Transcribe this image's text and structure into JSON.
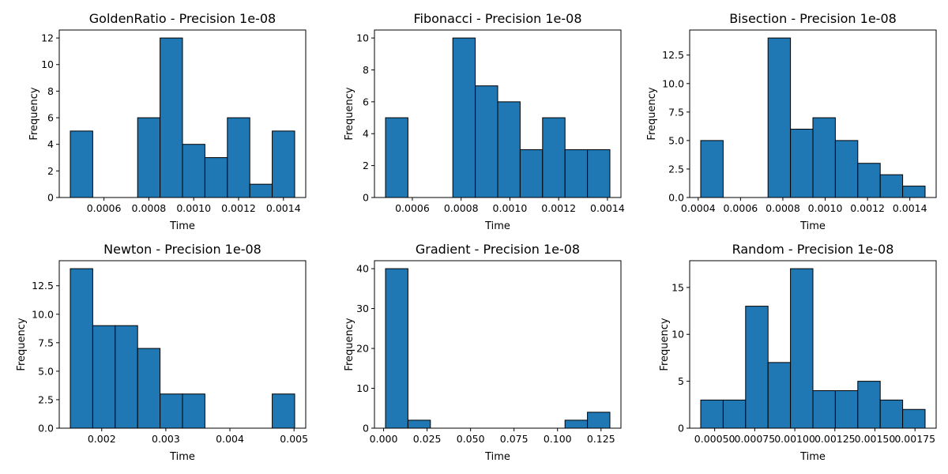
{
  "chart_data": [
    {
      "type": "bar",
      "title": "GoldenRatio - Precision 1e-08",
      "xlabel": "Time",
      "ylabel": "Frequency",
      "bin_edges": [
        0.00045,
        0.00055,
        0.00065,
        0.00075,
        0.00085,
        0.00095,
        0.00105,
        0.00115,
        0.00125,
        0.00135,
        0.00145
      ],
      "values": [
        5,
        0,
        0,
        6,
        12,
        4,
        3,
        6,
        1,
        5
      ],
      "xlim": [
        0.00045,
        0.00145
      ],
      "ylim": [
        0,
        12.6
      ],
      "xticks": [
        {
          "value": 0.0006,
          "label": "0.0006"
        },
        {
          "value": 0.0008,
          "label": "0.0008"
        },
        {
          "value": 0.001,
          "label": "0.0010"
        },
        {
          "value": 0.0012,
          "label": "0.0012"
        },
        {
          "value": 0.0014,
          "label": "0.0014"
        }
      ],
      "yticks": [
        {
          "value": 0,
          "label": "0"
        },
        {
          "value": 2,
          "label": "2"
        },
        {
          "value": 4,
          "label": "4"
        },
        {
          "value": 6,
          "label": "6"
        },
        {
          "value": 8,
          "label": "8"
        },
        {
          "value": 10,
          "label": "10"
        },
        {
          "value": 12,
          "label": "12"
        }
      ],
      "color": "#1f77b4"
    },
    {
      "type": "bar",
      "title": "Fibonacci - Precision 1e-08",
      "xlabel": "Time",
      "ylabel": "Frequency",
      "bin_edges": [
        0.00049,
        0.000582,
        0.000674,
        0.000766,
        0.000858,
        0.00095,
        0.001042,
        0.001134,
        0.001226,
        0.001318,
        0.00141
      ],
      "values": [
        5,
        0,
        0,
        10,
        7,
        6,
        3,
        5,
        3,
        3
      ],
      "xlim": [
        0.00049,
        0.00141
      ],
      "ylim": [
        0,
        10.5
      ],
      "xticks": [
        {
          "value": 0.0006,
          "label": "0.0006"
        },
        {
          "value": 0.0008,
          "label": "0.0008"
        },
        {
          "value": 0.001,
          "label": "0.0010"
        },
        {
          "value": 0.0012,
          "label": "0.0012"
        },
        {
          "value": 0.0014,
          "label": "0.0014"
        }
      ],
      "yticks": [
        {
          "value": 0,
          "label": "0"
        },
        {
          "value": 2,
          "label": "2"
        },
        {
          "value": 4,
          "label": "4"
        },
        {
          "value": 6,
          "label": "6"
        },
        {
          "value": 8,
          "label": "8"
        },
        {
          "value": 10,
          "label": "10"
        }
      ],
      "color": "#1f77b4"
    },
    {
      "type": "bar",
      "title": "Bisection - Precision 1e-08",
      "xlabel": "Time",
      "ylabel": "Frequency",
      "bin_edges": [
        0.000412,
        0.000518,
        0.000624,
        0.00073,
        0.000836,
        0.000942,
        0.001048,
        0.001154,
        0.00126,
        0.001366,
        0.001472
      ],
      "values": [
        5,
        0,
        0,
        14,
        6,
        7,
        5,
        3,
        2,
        1
      ],
      "xlim": [
        0.000412,
        0.001472
      ],
      "ylim": [
        0,
        14.7
      ],
      "xticks": [
        {
          "value": 0.0004,
          "label": "0.0004"
        },
        {
          "value": 0.0006,
          "label": "0.0006"
        },
        {
          "value": 0.0008,
          "label": "0.0008"
        },
        {
          "value": 0.001,
          "label": "0.0010"
        },
        {
          "value": 0.0012,
          "label": "0.0012"
        },
        {
          "value": 0.0014,
          "label": "0.0014"
        }
      ],
      "yticks": [
        {
          "value": 0,
          "label": "0.0"
        },
        {
          "value": 2.5,
          "label": "2.5"
        },
        {
          "value": 5,
          "label": "5.0"
        },
        {
          "value": 7.5,
          "label": "7.5"
        },
        {
          "value": 10,
          "label": "10.0"
        },
        {
          "value": 12.5,
          "label": "12.5"
        }
      ],
      "color": "#1f77b4"
    },
    {
      "type": "bar",
      "title": "Newton - Precision 1e-08",
      "xlabel": "Time",
      "ylabel": "Frequency",
      "bin_edges": [
        0.00151,
        0.00186,
        0.00221,
        0.00256,
        0.00291,
        0.00326,
        0.00361,
        0.00396,
        0.00431,
        0.00466,
        0.00501
      ],
      "values": [
        14,
        9,
        9,
        7,
        3,
        3,
        0,
        0,
        0,
        3
      ],
      "xlim": [
        0.00151,
        0.00501
      ],
      "ylim": [
        0,
        14.7
      ],
      "xticks": [
        {
          "value": 0.002,
          "label": "0.002"
        },
        {
          "value": 0.003,
          "label": "0.003"
        },
        {
          "value": 0.004,
          "label": "0.004"
        },
        {
          "value": 0.005,
          "label": "0.005"
        }
      ],
      "yticks": [
        {
          "value": 0,
          "label": "0.0"
        },
        {
          "value": 2.5,
          "label": "2.5"
        },
        {
          "value": 5,
          "label": "5.0"
        },
        {
          "value": 7.5,
          "label": "7.5"
        },
        {
          "value": 10,
          "label": "10.0"
        },
        {
          "value": 12.5,
          "label": "12.5"
        }
      ],
      "color": "#1f77b4"
    },
    {
      "type": "bar",
      "title": "Gradient - Precision 1e-08",
      "xlabel": "Time",
      "ylabel": "Frequency",
      "bin_edges": [
        0.0011,
        0.014,
        0.0269,
        0.0398,
        0.0527,
        0.0656,
        0.0785,
        0.0914,
        0.1043,
        0.1172,
        0.1301
      ],
      "values": [
        40,
        2,
        0,
        0,
        0,
        0,
        0,
        0,
        2,
        4
      ],
      "xlim": [
        0.0011,
        0.1301
      ],
      "ylim": [
        0,
        42
      ],
      "xticks": [
        {
          "value": 0,
          "label": "0.000"
        },
        {
          "value": 0.025,
          "label": "0.025"
        },
        {
          "value": 0.05,
          "label": "0.050"
        },
        {
          "value": 0.075,
          "label": "0.075"
        },
        {
          "value": 0.1,
          "label": "0.100"
        },
        {
          "value": 0.125,
          "label": "0.125"
        }
      ],
      "yticks": [
        {
          "value": 0,
          "label": "0"
        },
        {
          "value": 10,
          "label": "10"
        },
        {
          "value": 20,
          "label": "20"
        },
        {
          "value": 30,
          "label": "30"
        },
        {
          "value": 40,
          "label": "40"
        }
      ],
      "color": "#1f77b4"
    },
    {
      "type": "bar",
      "title": "Random - Precision 1e-08",
      "xlabel": "Time",
      "ylabel": "Frequency",
      "bin_edges": [
        0.000413,
        0.000553,
        0.000693,
        0.000833,
        0.000973,
        0.001113,
        0.001253,
        0.001393,
        0.001533,
        0.001673,
        0.001813
      ],
      "values": [
        3,
        3,
        13,
        7,
        17,
        4,
        4,
        5,
        3,
        2
      ],
      "xlim": [
        0.000413,
        0.001813
      ],
      "ylim": [
        0,
        17.85
      ],
      "xticks": [
        {
          "value": 0.0005,
          "label": "0.00050"
        },
        {
          "value": 0.00075,
          "label": "0.00075"
        },
        {
          "value": 0.001,
          "label": "0.00100"
        },
        {
          "value": 0.00125,
          "label": "0.00125"
        },
        {
          "value": 0.0015,
          "label": "0.00150"
        },
        {
          "value": 0.00175,
          "label": "0.00175"
        }
      ],
      "yticks": [
        {
          "value": 0,
          "label": "0"
        },
        {
          "value": 5,
          "label": "5"
        },
        {
          "value": 10,
          "label": "10"
        },
        {
          "value": 15,
          "label": "15"
        }
      ],
      "color": "#1f77b4"
    }
  ]
}
